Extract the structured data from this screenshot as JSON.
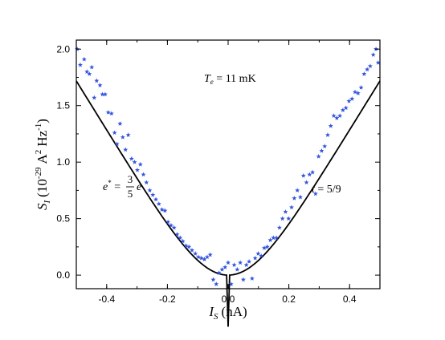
{
  "chart_data": {
    "type": "scatter",
    "xlabel": "I",
    "xlabel_sub": "S",
    "xlabel_unit": "(nA)",
    "ylabel": "S",
    "ylabel_sub": "I",
    "ylabel_unit_open": "(10",
    "ylabel_unit_exp": "-29",
    "ylabel_unit_a": "A",
    "ylabel_unit_a_exp": "2",
    "ylabel_unit_hz": "Hz",
    "ylabel_unit_hz_exp": "-1",
    "ylabel_unit_close": ")",
    "xlim": [
      -0.5,
      0.5
    ],
    "ylim": [
      -0.12,
      2.08
    ],
    "x_ticks": [
      -0.4,
      -0.2,
      0.0,
      0.2,
      0.4
    ],
    "x_tick_labels": [
      "-0.4",
      "-0.2",
      "0.0",
      "0.2",
      "0.4"
    ],
    "y_ticks": [
      0.0,
      0.5,
      1.0,
      1.5,
      2.0
    ],
    "y_tick_labels": [
      "0.0",
      "0.5",
      "1.0",
      "1.5",
      "2.0"
    ],
    "grid": false,
    "marker_color": "#3355dd",
    "line_color": "#000000",
    "annotations": {
      "temperature": {
        "sym": "T",
        "sub": "e",
        "rest": " = 11 mK"
      },
      "charge": {
        "lhs": "e",
        "sup": "*",
        "eq": " = ",
        "num": "3",
        "den": "5",
        "rhs": "e"
      },
      "transmission": {
        "sym": "t",
        "rest": " = 5/9"
      }
    },
    "series": [
      {
        "type": "scatter",
        "x": [
          -0.497,
          -0.487,
          -0.474,
          -0.465,
          -0.457,
          -0.449,
          -0.441,
          -0.433,
          -0.422,
          -0.414,
          -0.405,
          -0.395,
          -0.384,
          -0.374,
          -0.366,
          -0.356,
          -0.347,
          -0.338,
          -0.329,
          -0.318,
          -0.308,
          -0.299,
          -0.289,
          -0.279,
          -0.269,
          -0.258,
          -0.248,
          -0.238,
          -0.228,
          -0.218,
          -0.208,
          -0.198,
          -0.188,
          -0.178,
          -0.168,
          -0.158,
          -0.149,
          -0.139,
          -0.129,
          -0.119,
          -0.108,
          -0.098,
          -0.088,
          -0.078,
          -0.069,
          -0.059,
          -0.049,
          -0.039,
          -0.03,
          -0.02,
          -0.01,
          0.0,
          0.01,
          0.02,
          0.03,
          0.04,
          0.05,
          0.06,
          0.069,
          0.079,
          0.089,
          0.099,
          0.109,
          0.119,
          0.129,
          0.139,
          0.149,
          0.159,
          0.169,
          0.179,
          0.189,
          0.199,
          0.209,
          0.218,
          0.228,
          0.238,
          0.248,
          0.258,
          0.268,
          0.278,
          0.288,
          0.298,
          0.308,
          0.318,
          0.328,
          0.338,
          0.348,
          0.358,
          0.368,
          0.378,
          0.388,
          0.398,
          0.408,
          0.418,
          0.428,
          0.438,
          0.448,
          0.458,
          0.468,
          0.478,
          0.487,
          0.494
        ],
        "y": [
          2.0,
          1.86,
          1.91,
          1.8,
          1.78,
          1.84,
          1.57,
          1.72,
          1.68,
          1.6,
          1.6,
          1.44,
          1.43,
          1.26,
          1.16,
          1.34,
          1.22,
          1.11,
          1.24,
          1.03,
          1.0,
          0.93,
          0.98,
          0.89,
          0.82,
          0.75,
          0.71,
          0.67,
          0.63,
          0.58,
          0.57,
          0.47,
          0.44,
          0.42,
          0.36,
          0.33,
          0.3,
          0.26,
          0.25,
          0.22,
          0.19,
          0.16,
          0.15,
          0.14,
          0.16,
          0.18,
          -0.04,
          -0.08,
          0.02,
          0.05,
          0.07,
          0.11,
          -0.08,
          0.09,
          0.05,
          0.11,
          -0.04,
          0.09,
          0.12,
          -0.03,
          0.15,
          0.19,
          0.17,
          0.24,
          0.25,
          0.31,
          0.33,
          0.33,
          0.42,
          0.5,
          0.56,
          0.5,
          0.6,
          0.68,
          0.75,
          0.69,
          0.88,
          0.82,
          0.89,
          0.91,
          0.72,
          1.05,
          1.1,
          1.14,
          1.24,
          1.32,
          1.41,
          1.39,
          1.41,
          1.46,
          1.48,
          1.54,
          1.56,
          1.62,
          1.61,
          1.66,
          1.78,
          1.82,
          1.85,
          1.95,
          2.0,
          1.88
        ]
      },
      {
        "type": "line",
        "model": "shot_noise_fit",
        "x_range": [
          -0.5,
          0.5
        ],
        "params": {
          "slope": 4.35,
          "x0": 0.0,
          "width": 0.105
        }
      }
    ]
  }
}
